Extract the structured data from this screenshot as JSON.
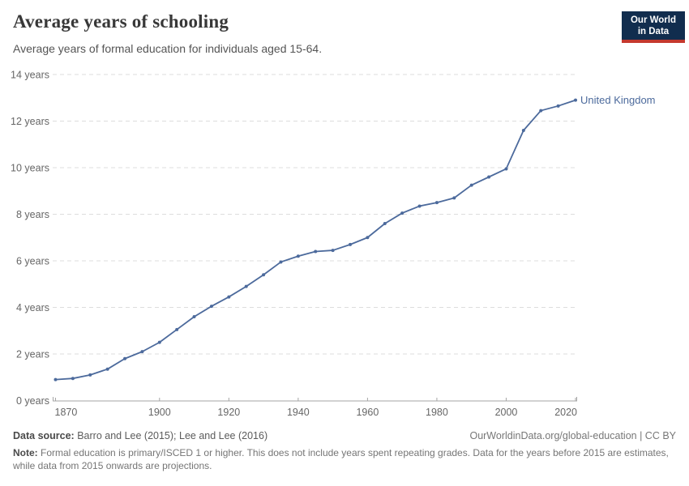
{
  "header": {
    "title": "Average years of schooling",
    "subtitle": "Average years of formal education for individuals aged 15-64.",
    "logo": {
      "line1": "Our World",
      "line2": "in Data"
    }
  },
  "colors": {
    "line": "#4c6a9c",
    "entity_label": "#4c6a9c",
    "gridline": "#dddddd",
    "axis": "#a5a5a5",
    "tick_label": "#666666",
    "logo_bg": "#112d4e",
    "logo_bar": "#c5392e"
  },
  "chart_data": {
    "type": "line",
    "title": "Average years of schooling",
    "subtitle": "Average years of formal education for individuals aged 15-64.",
    "xlabel": "",
    "ylabel": "",
    "xlim": [
      1870,
      2020
    ],
    "ylim": [
      0,
      14
    ],
    "grid": "horizontal dashed",
    "legend": "end-of-line entity label",
    "x_ticks": [
      1870,
      1900,
      1920,
      1940,
      1960,
      1980,
      2000,
      2020
    ],
    "y_ticks": [
      0,
      2,
      4,
      6,
      8,
      10,
      12,
      14
    ],
    "y_tick_suffix": " years",
    "series": [
      {
        "name": "United Kingdom",
        "x": [
          1870,
          1875,
          1880,
          1885,
          1890,
          1895,
          1900,
          1905,
          1910,
          1915,
          1920,
          1925,
          1930,
          1935,
          1940,
          1945,
          1950,
          1955,
          1960,
          1965,
          1970,
          1975,
          1980,
          1985,
          1990,
          1995,
          2000,
          2005,
          2010,
          2015,
          2020
        ],
        "values": [
          0.9,
          0.95,
          1.1,
          1.35,
          1.8,
          2.1,
          2.5,
          3.05,
          3.6,
          4.05,
          4.45,
          4.9,
          5.4,
          5.95,
          6.2,
          6.4,
          6.45,
          6.7,
          7.0,
          7.6,
          8.05,
          8.35,
          8.5,
          8.7,
          9.25,
          9.6,
          9.95,
          11.6,
          12.45,
          12.65,
          12.9
        ]
      }
    ]
  },
  "footer": {
    "source_label": "Data source:",
    "source_text": "Barro and Lee (2015); Lee and Lee (2016)",
    "link_text": "OurWorldinData.org/global-education | CC BY",
    "note_label": "Note:",
    "note_text": "Formal education is primary/ISCED 1 or higher. This does not include years spent repeating grades. Data for the years before 2015 are estimates, while data from 2015 onwards are projections."
  }
}
